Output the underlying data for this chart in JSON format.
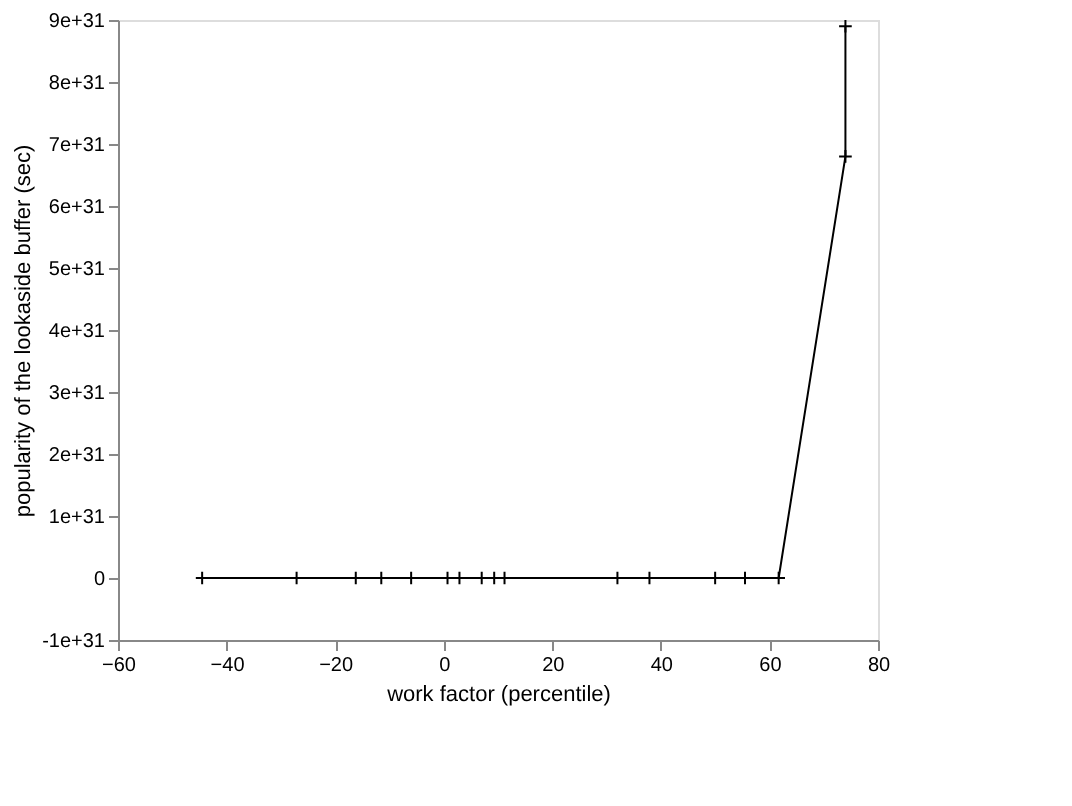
{
  "chart_data": {
    "type": "line",
    "xlabel": "work factor (percentile)",
    "ylabel": "popularity of the lookaside buffer  (sec)",
    "x": [
      -44.5,
      -27.1,
      -16.2,
      -11.5,
      -6,
      0.7,
      2.9,
      7,
      9.3,
      11.2,
      32,
      37.9,
      50,
      55.5,
      61.7,
      74,
      74
    ],
    "series": [
      {
        "color": "#000000",
        "values": [
          0,
          0,
          0,
          0,
          0,
          0,
          0,
          0,
          0,
          0,
          0,
          0,
          0,
          0,
          0,
          6.8e+31,
          8.9e+31
        ]
      }
    ],
    "xlim": [
      -60,
      80
    ],
    "xticks": [
      -60,
      -40,
      -20,
      0,
      20,
      40,
      60,
      80
    ],
    "ylim": [
      -1e+31,
      9e+31
    ],
    "yticks": [
      {
        "value": -1e+31,
        "label": "-1e+31"
      },
      0,
      {
        "value": 1e+31,
        "label": "1e+31"
      },
      {
        "value": 2e+31,
        "label": "2e+31"
      },
      {
        "value": 3e+31,
        "label": "3e+31"
      },
      {
        "value": 4e+31,
        "label": "4e+31"
      },
      {
        "value": 5e+31,
        "label": "5e+31"
      },
      {
        "value": 6e+31,
        "label": "6e+31"
      },
      {
        "value": 7e+31,
        "label": "7e+31"
      },
      {
        "value": 8e+31,
        "label": "8e+31"
      },
      {
        "value": 9e+31,
        "label": "9e+31"
      }
    ],
    "marker": "cross",
    "line_style": "solid",
    "grid": false
  }
}
